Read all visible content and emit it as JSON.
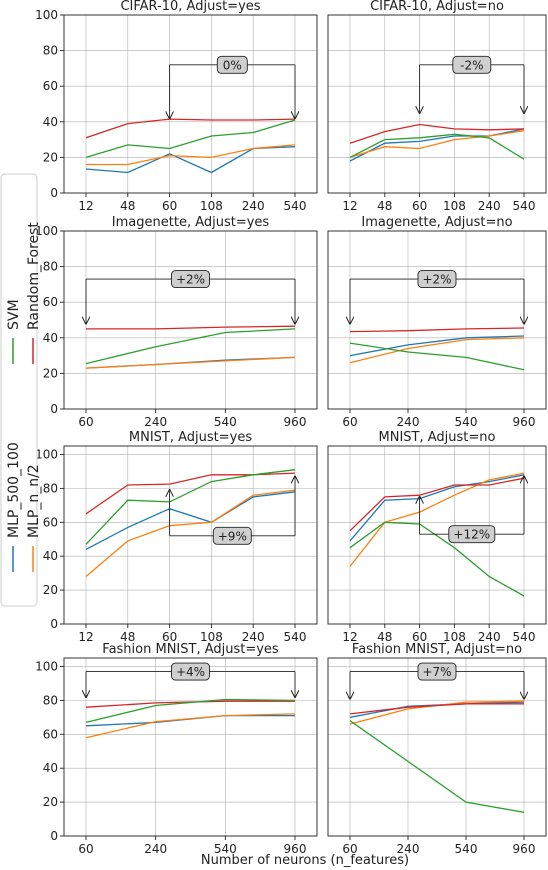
{
  "xlabel": "Number of neurons (n_features)",
  "legend": [
    {
      "name": "SVM",
      "color": "#2ca02c"
    },
    {
      "name": "Random_Forest",
      "color": "#d62728"
    },
    {
      "name": "MLP_500_100",
      "color": "#1f77b4"
    },
    {
      "name": "MLP_n_n/2",
      "color": "#ff7f0e"
    }
  ],
  "chart_data": [
    {
      "type": "line",
      "title": "CIFAR-10, Adjust=yes",
      "categories": [
        "12",
        "48",
        "60",
        "108",
        "240",
        "540"
      ],
      "ylim": [
        0,
        100
      ],
      "yticks": [
        0,
        20,
        40,
        60,
        80,
        100
      ],
      "grid": true,
      "series": [
        {
          "name": "SVM",
          "values": [
            20,
            27,
            25,
            32,
            34,
            41
          ]
        },
        {
          "name": "Random_Forest",
          "values": [
            31,
            39,
            41.5,
            41,
            41,
            41.5
          ]
        },
        {
          "name": "MLP_500_100",
          "values": [
            13.5,
            11.5,
            22,
            11.5,
            25,
            26
          ]
        },
        {
          "name": "MLP_n_n/2",
          "values": [
            16,
            16,
            21,
            20,
            25,
            27
          ]
        }
      ],
      "annotation": {
        "label": "0%",
        "from": 2,
        "to": 5,
        "level": 72,
        "a1": 42,
        "a2": 42
      }
    },
    {
      "type": "line",
      "title": "CIFAR-10, Adjust=no",
      "categories": [
        "12",
        "48",
        "60",
        "108",
        "240",
        "540"
      ],
      "ylim": [
        0,
        100
      ],
      "yticks": [
        0,
        20,
        40,
        60,
        80,
        100
      ],
      "grid": true,
      "series": [
        {
          "name": "SVM",
          "values": [
            20,
            30,
            31,
            33,
            31,
            19
          ]
        },
        {
          "name": "Random_Forest",
          "values": [
            28,
            34.5,
            38.5,
            36,
            35.5,
            36
          ]
        },
        {
          "name": "MLP_500_100",
          "values": [
            18,
            28,
            29,
            32,
            32,
            36
          ]
        },
        {
          "name": "MLP_n_n/2",
          "values": [
            20,
            26,
            25,
            30,
            32,
            35
          ]
        }
      ],
      "annotation": {
        "label": "-2%",
        "from": 2,
        "to": 5,
        "level": 72,
        "a1": 45,
        "a2": 45
      }
    },
    {
      "type": "line",
      "title": "Imagenette, Adjust=yes",
      "categories": [
        "60",
        "240",
        "540",
        "960"
      ],
      "ylim": [
        0,
        100
      ],
      "yticks": [
        0,
        20,
        40,
        60,
        80,
        100
      ],
      "grid": true,
      "series": [
        {
          "name": "SVM",
          "values": [
            25.5,
            35,
            43,
            45
          ]
        },
        {
          "name": "Random_Forest",
          "values": [
            45,
            45,
            46,
            46.5
          ]
        },
        {
          "name": "MLP_500_100",
          "values": [
            23,
            25,
            27.5,
            29
          ]
        },
        {
          "name": "MLP_n_n/2",
          "values": [
            23,
            25,
            27,
            29
          ]
        }
      ],
      "annotation": {
        "label": "+2%",
        "from": 0,
        "to": 3,
        "level": 73,
        "a1": 48,
        "a2": 48
      }
    },
    {
      "type": "line",
      "title": "Imagenette, Adjust=no",
      "categories": [
        "60",
        "240",
        "540",
        "960"
      ],
      "ylim": [
        0,
        100
      ],
      "yticks": [
        0,
        20,
        40,
        60,
        80,
        100
      ],
      "grid": true,
      "series": [
        {
          "name": "SVM",
          "values": [
            37,
            32,
            29,
            22
          ]
        },
        {
          "name": "Random_Forest",
          "values": [
            43.5,
            44,
            45,
            45.5
          ]
        },
        {
          "name": "MLP_500_100",
          "values": [
            30,
            36,
            40,
            41
          ]
        },
        {
          "name": "MLP_n_n/2",
          "values": [
            26,
            34,
            39,
            40
          ]
        }
      ],
      "annotation": {
        "label": "+2%",
        "from": 0,
        "to": 3,
        "level": 73,
        "a1": 48,
        "a2": 48
      }
    },
    {
      "type": "line",
      "title": "MNIST, Adjust=yes",
      "categories": [
        "12",
        "48",
        "60",
        "108",
        "240",
        "540"
      ],
      "ylim": [
        0,
        105
      ],
      "yticks": [
        0,
        20,
        40,
        60,
        80,
        100
      ],
      "grid": true,
      "series": [
        {
          "name": "SVM",
          "values": [
            47,
            73,
            72,
            84,
            88,
            91
          ]
        },
        {
          "name": "Random_Forest",
          "values": [
            65,
            82,
            82.5,
            88,
            88,
            89
          ]
        },
        {
          "name": "MLP_500_100",
          "values": [
            44,
            57,
            68,
            60,
            75,
            78
          ]
        },
        {
          "name": "MLP_n_n/2",
          "values": [
            28,
            49,
            58,
            60,
            76,
            79
          ]
        }
      ],
      "annotation": {
        "label": "+9%",
        "from": 2,
        "to": 5,
        "level": 52,
        "a1": 79,
        "a2": 87,
        "dir": "up"
      }
    },
    {
      "type": "line",
      "title": "MNIST, Adjust=no",
      "categories": [
        "12",
        "48",
        "60",
        "108",
        "240",
        "540"
      ],
      "ylim": [
        0,
        105
      ],
      "yticks": [
        0,
        20,
        40,
        60,
        80,
        100
      ],
      "grid": true,
      "series": [
        {
          "name": "SVM",
          "values": [
            45,
            60,
            59,
            45,
            28,
            16.5
          ]
        },
        {
          "name": "Random_Forest",
          "values": [
            55,
            75,
            76,
            82,
            82,
            86
          ]
        },
        {
          "name": "MLP_500_100",
          "values": [
            49,
            73,
            74,
            81,
            84,
            88
          ]
        },
        {
          "name": "MLP_n_n/2",
          "values": [
            34,
            60,
            66,
            76,
            85,
            89
          ]
        }
      ],
      "annotation": {
        "label": "+12%",
        "from": 2,
        "to": 5,
        "level": 53,
        "a1": 75,
        "a2": 87,
        "dir": "up"
      }
    },
    {
      "type": "line",
      "title": "Fashion MNIST, Adjust=yes",
      "categories": [
        "60",
        "240",
        "540",
        "960"
      ],
      "ylim": [
        0,
        105
      ],
      "yticks": [
        0,
        20,
        40,
        60,
        80,
        100
      ],
      "grid": true,
      "series": [
        {
          "name": "SVM",
          "values": [
            67,
            77,
            80.5,
            80
          ]
        },
        {
          "name": "Random_Forest",
          "values": [
            76,
            78.5,
            79.5,
            79.5
          ]
        },
        {
          "name": "MLP_500_100",
          "values": [
            65,
            67,
            71,
            71
          ]
        },
        {
          "name": "MLP_n_n/2",
          "values": [
            58,
            67.5,
            71,
            72
          ]
        }
      ],
      "annotation": {
        "label": "+4%",
        "from": 0,
        "to": 3,
        "level": 97,
        "a1": 82,
        "a2": 82
      }
    },
    {
      "type": "line",
      "title": "Fashion MNIST, Adjust=no",
      "categories": [
        "60",
        "240",
        "540",
        "960"
      ],
      "ylim": [
        0,
        105
      ],
      "yticks": [
        0,
        20,
        40,
        60,
        80,
        100
      ],
      "grid": true,
      "series": [
        {
          "name": "SVM",
          "values": [
            68,
            44,
            20,
            14
          ]
        },
        {
          "name": "Random_Forest",
          "values": [
            72,
            76,
            78,
            78
          ]
        },
        {
          "name": "MLP_500_100",
          "values": [
            70,
            76.5,
            78,
            79
          ]
        },
        {
          "name": "MLP_n_n/2",
          "values": [
            66,
            75,
            79,
            79.5
          ]
        }
      ],
      "annotation": {
        "label": "+7%",
        "from": 0,
        "to": 3,
        "level": 97,
        "a1": 81,
        "a2": 81
      }
    }
  ]
}
